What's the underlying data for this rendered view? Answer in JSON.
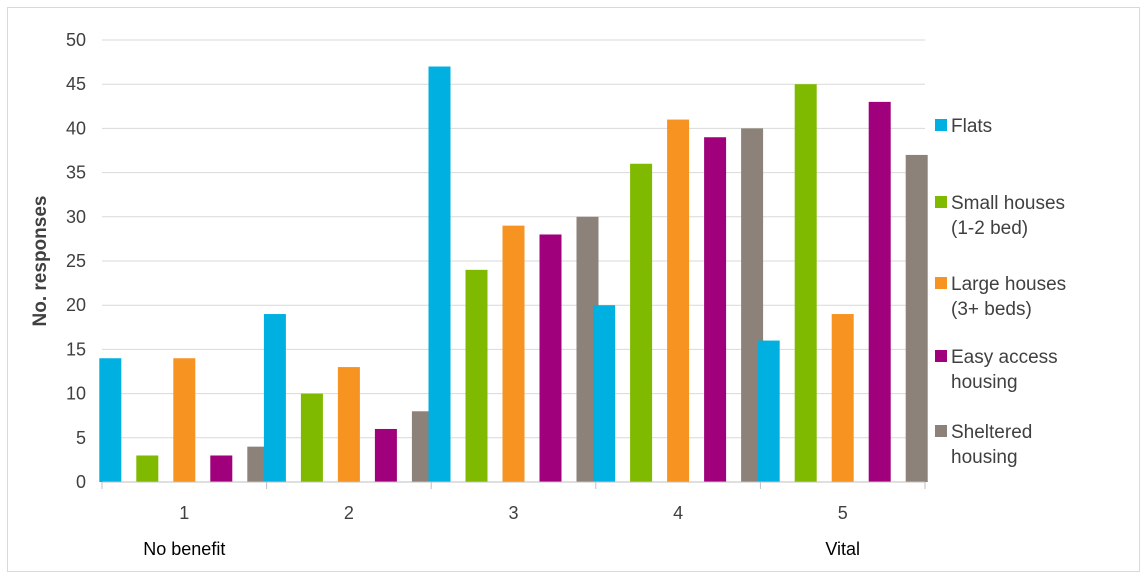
{
  "chart_data": {
    "type": "bar",
    "ylabel": "No. responses",
    "xlabel": "",
    "ylim": [
      0,
      50
    ],
    "yticks": [
      0,
      5,
      10,
      15,
      20,
      25,
      30,
      35,
      40,
      45,
      50
    ],
    "categories": [
      "1",
      "2",
      "3",
      "4",
      "5"
    ],
    "category_notes": {
      "1": "No benefit",
      "5": "Vital"
    },
    "grid": true,
    "legend_position": "right",
    "series": [
      {
        "name": [
          "Flats"
        ],
        "color": "#00b0e0",
        "values": [
          14,
          19,
          47,
          20,
          16
        ]
      },
      {
        "name": [
          "Small houses",
          "(1-2 bed)"
        ],
        "color": "#7fba00",
        "values": [
          3,
          10,
          24,
          36,
          45
        ]
      },
      {
        "name": [
          "Large houses",
          "(3+ beds)"
        ],
        "color": "#f79421",
        "values": [
          14,
          13,
          29,
          41,
          19
        ]
      },
      {
        "name": [
          "Easy access",
          "housing"
        ],
        "color": "#a0007c",
        "values": [
          3,
          6,
          28,
          39,
          43
        ]
      },
      {
        "name": [
          "Sheltered",
          "housing"
        ],
        "color": "#8c8279",
        "values": [
          4,
          8,
          30,
          40,
          37
        ]
      }
    ]
  }
}
